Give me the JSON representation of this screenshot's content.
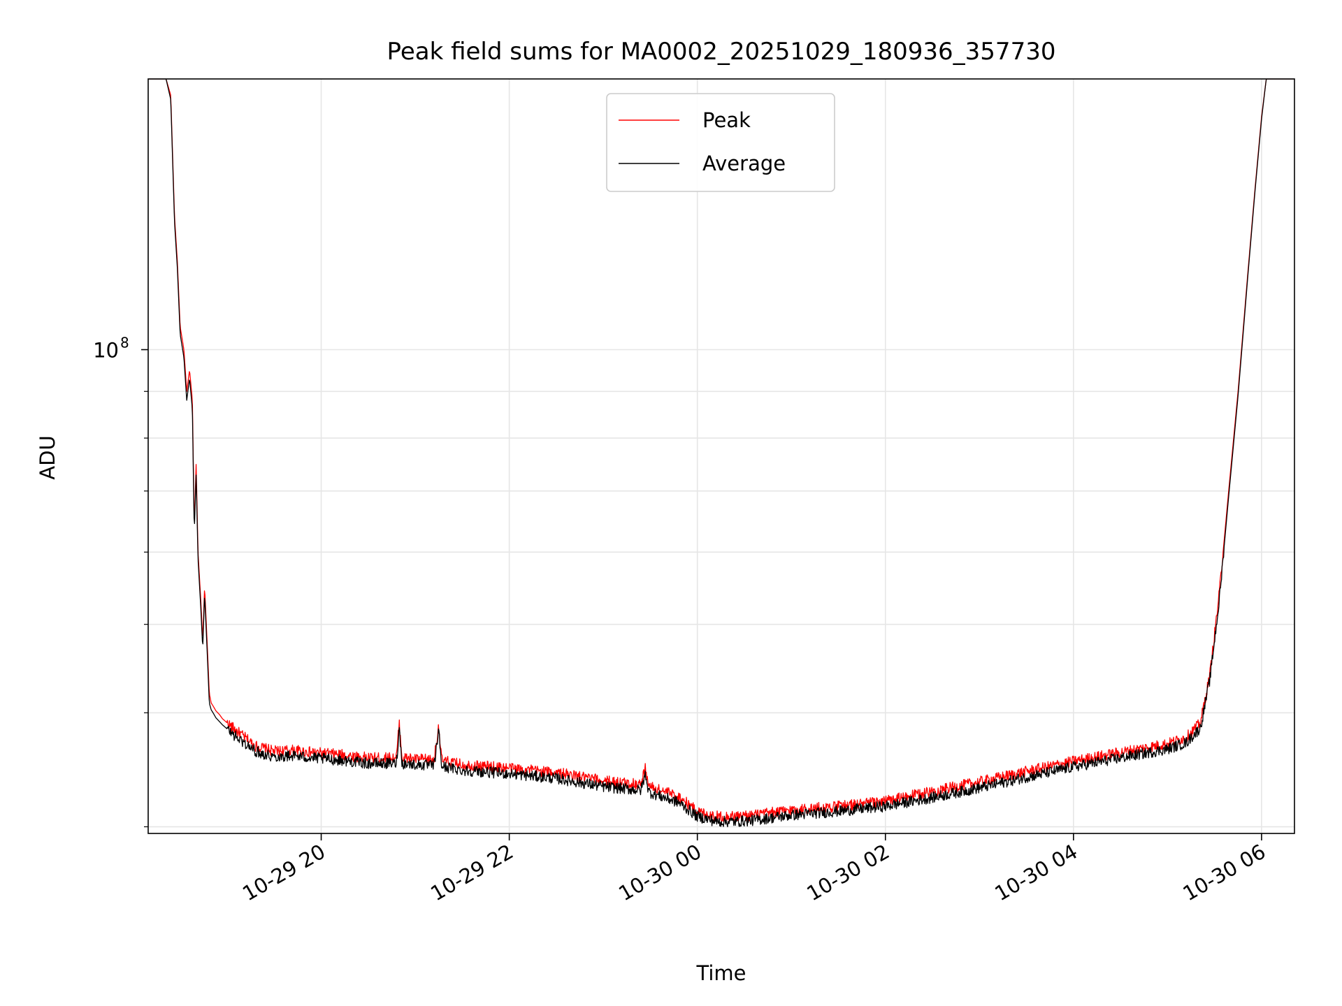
{
  "chart_data": {
    "type": "line",
    "title": "Peak field sums for MA0002_20251029_180936_357730",
    "xlabel": "Time",
    "ylabel": "ADU",
    "yscale": "log",
    "grid": true,
    "legend_position": "top-center",
    "x_unit": "hours since 10-29 00:00",
    "xlim": [
      18.16,
      30.35
    ],
    "ylim": [
      29500000,
      198000000
    ],
    "x_ticks": [
      {
        "value": 20,
        "label": "10-29 20"
      },
      {
        "value": 22,
        "label": "10-29 22"
      },
      {
        "value": 24,
        "label": "10-30 00"
      },
      {
        "value": 26,
        "label": "10-30 02"
      },
      {
        "value": 28,
        "label": "10-30 04"
      },
      {
        "value": 30,
        "label": "10-30 06"
      }
    ],
    "y_major_ticks": [
      {
        "value": 100000000,
        "base": "10",
        "exponent": "8"
      }
    ],
    "y_minor_ticks": [
      30000000,
      40000000,
      50000000,
      60000000,
      70000000,
      80000000,
      90000000,
      200000000
    ],
    "series": [
      {
        "name": "Peak",
        "color": "#ff0000",
        "x": [
          18.16,
          18.35,
          18.4,
          18.44,
          18.47,
          18.5,
          18.54,
          18.57,
          18.6,
          18.63,
          18.65,
          18.67,
          18.69,
          18.72,
          18.74,
          18.76,
          18.79,
          18.81,
          18.83,
          18.85,
          18.88,
          18.92,
          18.95,
          19.0,
          19.1,
          19.3,
          19.5,
          19.7,
          19.9,
          20.2,
          20.5,
          20.7,
          20.8,
          20.83,
          20.86,
          21.0,
          21.2,
          21.25,
          21.28,
          21.31,
          21.5,
          22.0,
          22.5,
          23.0,
          23.4,
          23.45,
          23.48,
          23.5,
          23.8,
          24.0,
          24.2,
          24.4,
          24.6,
          25.0,
          25.5,
          26.0,
          26.5,
          27.0,
          27.5,
          28.0,
          28.5,
          29.0,
          29.2,
          29.35,
          29.45,
          29.55,
          29.65,
          29.75,
          29.85,
          29.93,
          30.0,
          30.05,
          30.1,
          30.35
        ],
        "y": [
          198000000,
          198000000,
          190000000,
          140000000,
          125000000,
          106000000,
          100000000,
          90000000,
          95000000,
          88000000,
          64000000,
          75000000,
          60000000,
          53000000,
          48000000,
          55000000,
          47000000,
          42000000,
          41000000,
          40700000,
          40200000,
          39800000,
          39400000,
          39000000,
          38200000,
          36800000,
          36300000,
          36400000,
          36200000,
          36000000,
          35700000,
          35700000,
          35700000,
          39000000,
          35700000,
          35600000,
          35500000,
          38800000,
          35500000,
          35400000,
          35100000,
          34800000,
          34400000,
          33700000,
          33400000,
          34900000,
          33300000,
          33200000,
          32400000,
          31200000,
          30800000,
          30800000,
          30900000,
          31300000,
          31600000,
          32000000,
          32800000,
          33600000,
          34500000,
          35400000,
          36200000,
          37000000,
          37600000,
          39000000,
          44000000,
          54000000,
          70000000,
          90000000,
          120000000,
          150000000,
          180000000,
          198000000,
          198000000,
          198000000
        ]
      },
      {
        "name": "Average",
        "color": "#000000",
        "x": [
          18.16,
          18.35,
          18.4,
          18.44,
          18.47,
          18.5,
          18.54,
          18.57,
          18.6,
          18.63,
          18.65,
          18.67,
          18.69,
          18.72,
          18.74,
          18.76,
          18.79,
          18.81,
          18.83,
          18.85,
          18.88,
          18.92,
          18.95,
          19.0,
          19.1,
          19.3,
          19.5,
          19.7,
          19.9,
          20.2,
          20.5,
          20.7,
          20.8,
          20.83,
          20.86,
          21.0,
          21.2,
          21.25,
          21.28,
          21.31,
          21.5,
          22.0,
          22.5,
          23.0,
          23.4,
          23.45,
          23.48,
          23.5,
          23.8,
          24.0,
          24.2,
          24.4,
          24.6,
          25.0,
          25.5,
          26.0,
          26.5,
          27.0,
          27.5,
          28.0,
          28.5,
          29.0,
          29.2,
          29.35,
          29.45,
          29.55,
          29.65,
          29.75,
          29.85,
          29.93,
          30.0,
          30.05,
          30.1,
          30.35
        ],
        "y": [
          198000000,
          198000000,
          188000000,
          138000000,
          123000000,
          104000000,
          98000000,
          88000000,
          93000000,
          86000000,
          63000000,
          73000000,
          59000000,
          52000000,
          47000000,
          54000000,
          46000000,
          41000000,
          40300000,
          40000000,
          39500000,
          39100000,
          38800000,
          38400000,
          37600000,
          36300000,
          35800000,
          35900000,
          35700000,
          35500000,
          35200000,
          35200000,
          35200000,
          38500000,
          35200000,
          35100000,
          35000000,
          38300000,
          35000000,
          34900000,
          34600000,
          34300000,
          33900000,
          33200000,
          32900000,
          34300000,
          32800000,
          32700000,
          31900000,
          30800000,
          30400000,
          30400000,
          30500000,
          30900000,
          31200000,
          31600000,
          32300000,
          33100000,
          34000000,
          34900000,
          35700000,
          36500000,
          37100000,
          38500000,
          43500000,
          53000000,
          69000000,
          89000000,
          119000000,
          149000000,
          179000000,
          198000000,
          198000000,
          198000000
        ]
      }
    ]
  }
}
